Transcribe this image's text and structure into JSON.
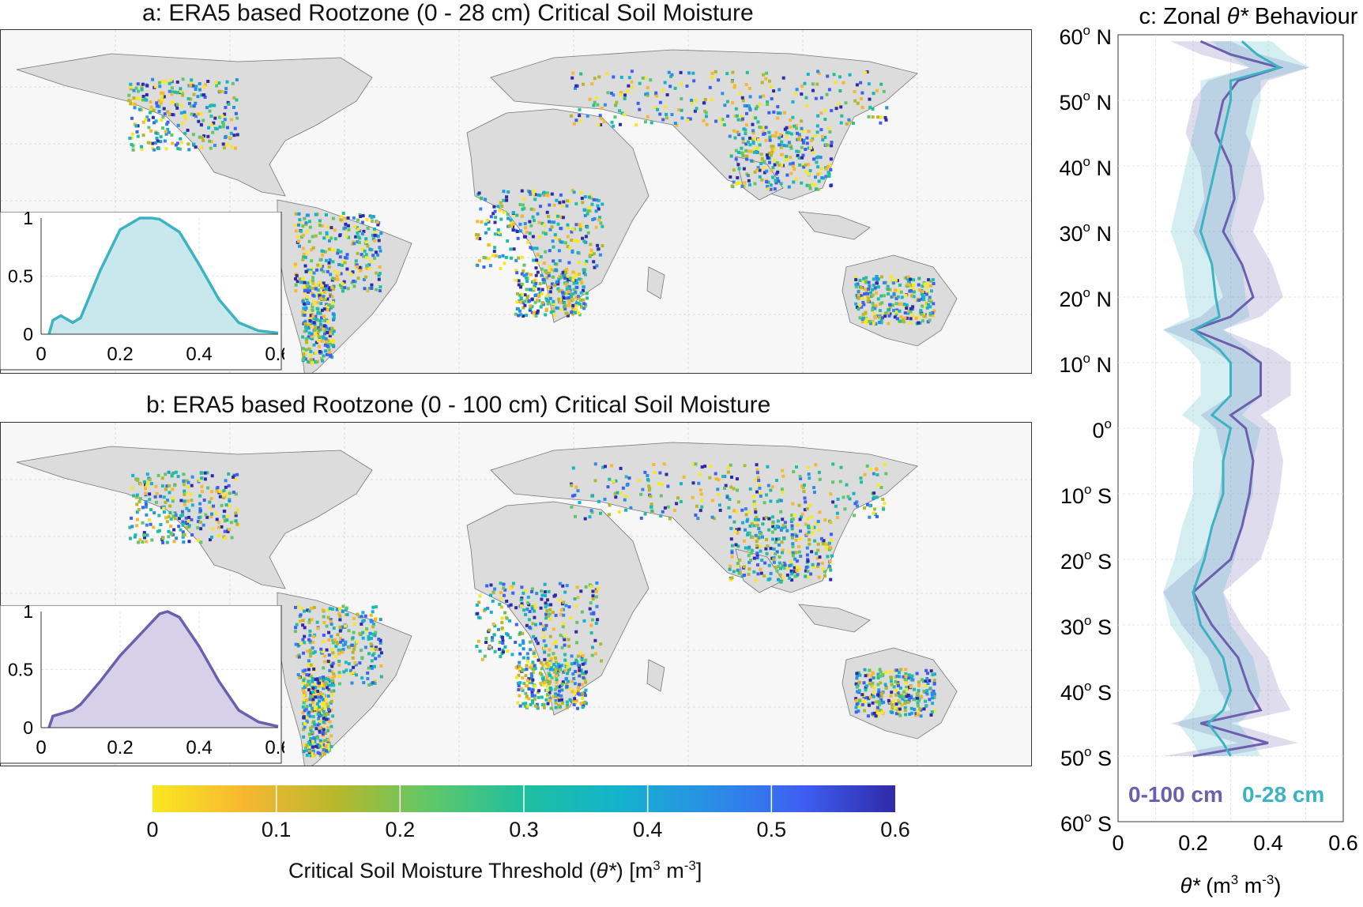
{
  "panel_a": {
    "title": "a: ERA5 based Rootzone (0 - 28 cm) Critical Soil Moisture",
    "inset": {
      "color": "#3cb3c2",
      "fill": "#c8e8ee",
      "xticks": [
        "0",
        "0.2",
        "0.4",
        "0.6"
      ],
      "yticks": [
        "0",
        "0.5",
        "1"
      ]
    }
  },
  "panel_b": {
    "title": "b: ERA5 based  Rootzone (0 - 100 cm) Critical Soil Moisture",
    "inset": {
      "color": "#6c5fb0",
      "fill": "#d6d1e8",
      "xticks": [
        "0",
        "0.2",
        "0.4",
        "0.6"
      ],
      "yticks": [
        "0",
        "0.5",
        "1"
      ]
    }
  },
  "colorbar": {
    "ticks": [
      "0",
      "0.1",
      "0.2",
      "0.3",
      "0.4",
      "0.5",
      "0.6"
    ],
    "label_prefix": "Critical Soil Moisture Threshold (",
    "label_theta": "θ*",
    "label_mid": ") [m",
    "label_sup1": "3",
    "label_mid2": " m",
    "label_sup2": "-3",
    "label_end": "]",
    "colors": [
      "#f9e721",
      "#f7b731",
      "#b6b82c",
      "#5fc76a",
      "#1fbfa0",
      "#13b3cc",
      "#2a8fe6",
      "#3e5ff2",
      "#2f2aa8"
    ]
  },
  "panel_c": {
    "title_prefix": "c: Zonal ",
    "title_theta": "θ*",
    "title_suffix": " Behaviour",
    "lat_labels": [
      "60",
      "50",
      "40",
      "30",
      "20",
      "10",
      "0",
      "10",
      "20",
      "30",
      "40",
      "50",
      "60"
    ],
    "lat_dirs": [
      "N",
      "N",
      "N",
      "N",
      "N",
      "N",
      "",
      "S",
      "S",
      "S",
      "S",
      "S",
      "S"
    ],
    "xticks": [
      "0",
      "0.2",
      "0.4",
      "0.6"
    ],
    "xlabel_theta": "θ*",
    "xlabel_rest": " (m",
    "xlabel_sup1": "3",
    "xlabel_mid": " m",
    "xlabel_sup2": "-3",
    "xlabel_end": ")",
    "legend_100": "0-100 cm",
    "legend_28": "0-28 cm",
    "color_100": "#6c5fb0",
    "color_28": "#3cb3c2"
  },
  "chart_data": [
    {
      "type": "area",
      "panel": "a inset",
      "x": [
        0.02,
        0.03,
        0.05,
        0.08,
        0.1,
        0.15,
        0.2,
        0.25,
        0.28,
        0.3,
        0.35,
        0.4,
        0.45,
        0.5,
        0.55,
        0.6
      ],
      "y": [
        0.0,
        0.12,
        0.16,
        0.1,
        0.14,
        0.55,
        0.9,
        1.0,
        1.0,
        0.99,
        0.88,
        0.6,
        0.3,
        0.1,
        0.03,
        0.01
      ],
      "xlim": [
        0,
        0.6
      ],
      "ylim": [
        0,
        1
      ]
    },
    {
      "type": "area",
      "panel": "b inset",
      "x": [
        0.02,
        0.03,
        0.05,
        0.08,
        0.1,
        0.15,
        0.2,
        0.25,
        0.3,
        0.32,
        0.35,
        0.4,
        0.45,
        0.5,
        0.55,
        0.6
      ],
      "y": [
        0.0,
        0.1,
        0.12,
        0.15,
        0.2,
        0.4,
        0.62,
        0.8,
        0.98,
        1.0,
        0.95,
        0.7,
        0.4,
        0.15,
        0.05,
        0.01
      ],
      "xlim": [
        0,
        0.6
      ],
      "ylim": [
        0,
        1
      ]
    },
    {
      "type": "line",
      "panel": "c",
      "lat": [
        59,
        57,
        55,
        53,
        50,
        45,
        40,
        35,
        30,
        25,
        20,
        17,
        15,
        12,
        10,
        5,
        2,
        0,
        -5,
        -10,
        -15,
        -20,
        -25,
        -30,
        -35,
        -40,
        -43,
        -45,
        -48,
        -50
      ],
      "series": [
        {
          "name": "0-100 cm",
          "values": [
            0.22,
            0.3,
            0.43,
            0.32,
            0.28,
            0.26,
            0.3,
            0.31,
            0.28,
            0.33,
            0.36,
            0.3,
            0.2,
            0.33,
            0.38,
            0.38,
            0.3,
            0.34,
            0.36,
            0.35,
            0.33,
            0.3,
            0.2,
            0.25,
            0.32,
            0.35,
            0.38,
            0.22,
            0.4,
            0.2
          ]
        },
        {
          "name": "0-28 cm",
          "values": [
            0.33,
            0.37,
            0.43,
            0.3,
            0.3,
            0.28,
            0.26,
            0.24,
            0.22,
            0.25,
            0.26,
            0.27,
            0.2,
            0.27,
            0.3,
            0.3,
            0.25,
            0.3,
            0.28,
            0.28,
            0.25,
            0.23,
            0.2,
            0.22,
            0.28,
            0.3,
            0.28,
            0.24,
            0.28,
            0.3
          ]
        }
      ],
      "xlim": [
        0,
        0.6
      ],
      "ylim": [
        -60,
        60
      ]
    }
  ]
}
